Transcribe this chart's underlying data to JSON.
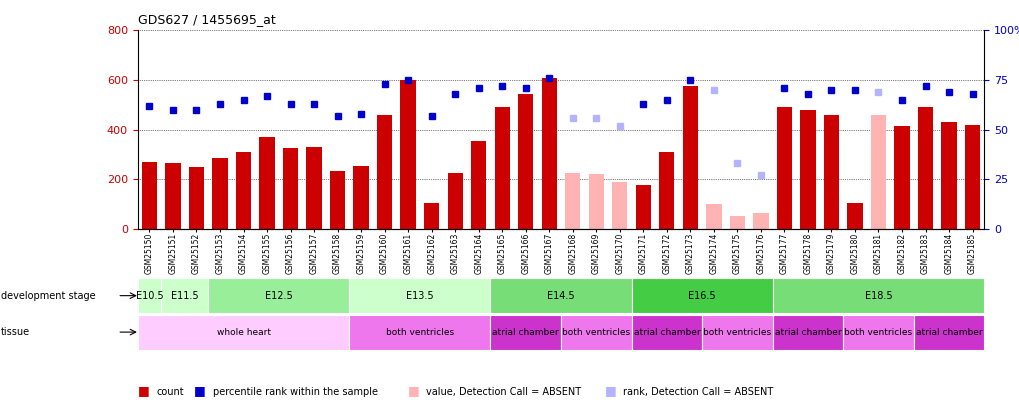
{
  "title": "GDS627 / 1455695_at",
  "samples": [
    "GSM25150",
    "GSM25151",
    "GSM25152",
    "GSM25153",
    "GSM25154",
    "GSM25155",
    "GSM25156",
    "GSM25157",
    "GSM25158",
    "GSM25159",
    "GSM25160",
    "GSM25161",
    "GSM25162",
    "GSM25163",
    "GSM25164",
    "GSM25165",
    "GSM25166",
    "GSM25167",
    "GSM25168",
    "GSM25169",
    "GSM25170",
    "GSM25171",
    "GSM25172",
    "GSM25173",
    "GSM25174",
    "GSM25175",
    "GSM25176",
    "GSM25177",
    "GSM25178",
    "GSM25179",
    "GSM25180",
    "GSM25181",
    "GSM25182",
    "GSM25183",
    "GSM25184",
    "GSM25185"
  ],
  "counts": [
    270,
    265,
    250,
    285,
    310,
    370,
    325,
    330,
    235,
    255,
    460,
    600,
    105,
    225,
    355,
    490,
    545,
    610,
    225,
    220,
    190,
    175,
    310,
    575,
    100,
    50,
    65,
    490,
    480,
    460,
    105,
    460,
    415,
    490,
    430,
    420
  ],
  "absent_value": [
    false,
    false,
    false,
    false,
    false,
    false,
    false,
    false,
    false,
    false,
    false,
    false,
    false,
    false,
    false,
    false,
    false,
    false,
    true,
    true,
    true,
    false,
    false,
    false,
    true,
    true,
    true,
    false,
    false,
    false,
    false,
    true,
    false,
    false,
    false,
    false
  ],
  "percentile_rank": [
    62,
    60,
    60,
    63,
    65,
    67,
    63,
    63,
    57,
    58,
    73,
    75,
    57,
    68,
    71,
    72,
    71,
    76,
    56,
    56,
    52,
    63,
    65,
    75,
    70,
    33,
    27,
    71,
    68,
    70,
    70,
    69,
    65,
    72,
    69,
    68
  ],
  "absent_rank": [
    false,
    false,
    false,
    false,
    false,
    false,
    false,
    false,
    false,
    false,
    false,
    false,
    false,
    false,
    false,
    false,
    false,
    false,
    true,
    true,
    true,
    false,
    false,
    false,
    true,
    true,
    true,
    false,
    false,
    false,
    false,
    true,
    false,
    false,
    false,
    false
  ],
  "ylim": [
    0,
    800
  ],
  "yticks": [
    0,
    200,
    400,
    600,
    800
  ],
  "right_yticks": [
    0,
    25,
    50,
    75,
    100
  ],
  "bar_color_present": "#cc0000",
  "bar_color_absent": "#ffb3b3",
  "dot_color_present": "#0000cc",
  "dot_color_absent": "#b3b3ff",
  "background_color": "#ffffff",
  "stage_bounds": [
    [
      0,
      1,
      "E10.5",
      "#ccffcc"
    ],
    [
      1,
      3,
      "E11.5",
      "#ccffcc"
    ],
    [
      3,
      9,
      "E12.5",
      "#99ee99"
    ],
    [
      9,
      15,
      "E13.5",
      "#ccffcc"
    ],
    [
      15,
      21,
      "E14.5",
      "#77dd77"
    ],
    [
      21,
      27,
      "E16.5",
      "#44cc44"
    ],
    [
      27,
      36,
      "E18.5",
      "#77dd77"
    ]
  ],
  "tissue_bounds": [
    [
      0,
      9,
      "whole heart",
      "#ffccff"
    ],
    [
      9,
      15,
      "both ventricles",
      "#ee77ee"
    ],
    [
      15,
      18,
      "atrial chamber",
      "#cc33cc"
    ],
    [
      18,
      21,
      "both ventricles",
      "#ee77ee"
    ],
    [
      21,
      24,
      "atrial chamber",
      "#cc33cc"
    ],
    [
      24,
      27,
      "both ventricles",
      "#ee77ee"
    ],
    [
      27,
      30,
      "atrial chamber",
      "#cc33cc"
    ],
    [
      30,
      33,
      "both ventricles",
      "#ee77ee"
    ],
    [
      33,
      36,
      "atrial chamber",
      "#cc33cc"
    ]
  ],
  "legend_items": [
    {
      "label": "count",
      "color": "#cc0000"
    },
    {
      "label": "percentile rank within the sample",
      "color": "#0000cc"
    },
    {
      "label": "value, Detection Call = ABSENT",
      "color": "#ffb3b3"
    },
    {
      "label": "rank, Detection Call = ABSENT",
      "color": "#b3b3ff"
    }
  ]
}
